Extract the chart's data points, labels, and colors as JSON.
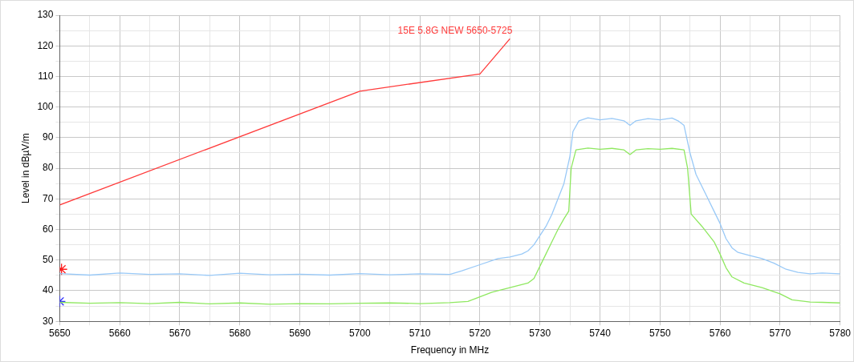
{
  "chart_data": {
    "type": "line",
    "xlabel": "Frequency in MHz",
    "ylabel": "Level in dBµV/m",
    "xlim": [
      5650,
      5780
    ],
    "xticks": [
      5650,
      {
        "value": 5655,
        "label": null
      },
      5660,
      {
        "value": 5665,
        "label": null
      },
      5670,
      {
        "value": 5675,
        "label": null
      },
      5680,
      {
        "value": 5685,
        "label": null
      },
      5690,
      {
        "value": 5695,
        "label": null
      },
      5700,
      {
        "value": 5705,
        "label": null
      },
      5710,
      {
        "value": 5715,
        "label": null
      },
      5720,
      {
        "value": 5725,
        "label": null
      },
      5730,
      {
        "value": 5735,
        "label": null
      },
      5740,
      {
        "value": 5745,
        "label": null
      },
      5750,
      {
        "value": 5755,
        "label": null
      },
      5760,
      {
        "value": 5765,
        "label": null
      },
      5770,
      {
        "value": 5775,
        "label": null
      },
      5780
    ],
    "ylim": [
      30,
      130
    ],
    "yticks": [
      30,
      {
        "value": 35,
        "label": null
      },
      40,
      {
        "value": 45,
        "label": null
      },
      50,
      {
        "value": 55,
        "label": null
      },
      60,
      {
        "value": 65,
        "label": null
      },
      70,
      {
        "value": 75,
        "label": null
      },
      80,
      {
        "value": 85,
        "label": null
      },
      90,
      {
        "value": 95,
        "label": null
      },
      100,
      {
        "value": 105,
        "label": null
      },
      110,
      {
        "value": 115,
        "label": null
      },
      120,
      {
        "value": 125,
        "label": null
      },
      130
    ],
    "grid": true,
    "legend": false,
    "line_style": "solid",
    "series": [
      {
        "name": "15E 5.8G NEW 5650-5725",
        "color": "#ff3b3b",
        "x": [
          5650,
          5700,
          5720,
          5725
        ],
        "values": [
          68,
          105.2,
          110.8,
          122.3
        ]
      },
      {
        "color": "#99c9f7",
        "x": [
          5650,
          5655,
          5660,
          5665,
          5670,
          5675,
          5680,
          5685,
          5690,
          5695,
          5700,
          5705,
          5710,
          5715,
          5717,
          5720,
          5723,
          5725,
          5727,
          5728,
          5729,
          5730,
          5731,
          5732,
          5733,
          5734,
          5735,
          5735.5,
          5736.5,
          5738,
          5740,
          5742,
          5744,
          5745,
          5746,
          5748,
          5750,
          5752,
          5753,
          5754,
          5755,
          5756,
          5757,
          5758,
          5759,
          5760,
          5761,
          5762,
          5763,
          5765,
          5767,
          5769,
          5771,
          5773,
          5775,
          5777,
          5780
        ],
        "values": [
          45.6,
          45.1,
          45.8,
          45.3,
          45.5,
          45.0,
          45.7,
          45.2,
          45.4,
          45.1,
          45.6,
          45.2,
          45.5,
          45.3,
          46.5,
          48.5,
          50.5,
          51,
          52,
          53,
          55,
          58,
          61,
          65,
          70,
          75,
          84,
          92,
          95.5,
          96.5,
          95.8,
          96.3,
          95.5,
          94,
          95.5,
          96.2,
          95.8,
          96.4,
          95.5,
          94,
          85,
          78,
          74,
          70,
          66,
          62,
          57,
          54,
          52.5,
          51.5,
          50.5,
          49,
          47,
          46,
          45.5,
          45.8,
          45.5
        ]
      },
      {
        "color": "#8fe860",
        "x": [
          5650,
          5655,
          5660,
          5665,
          5670,
          5675,
          5680,
          5685,
          5690,
          5695,
          5700,
          5705,
          5710,
          5715,
          5718,
          5720,
          5722,
          5725,
          5728,
          5729,
          5730,
          5731,
          5732,
          5733,
          5734,
          5734.8,
          5735.2,
          5736,
          5738,
          5740,
          5742,
          5744,
          5745,
          5746,
          5748,
          5750,
          5752,
          5754,
          5754.6,
          5755.2,
          5757,
          5759,
          5760,
          5761,
          5762,
          5764,
          5767,
          5770,
          5772,
          5775,
          5777,
          5780
        ],
        "values": [
          36.2,
          35.9,
          36.1,
          35.8,
          36.2,
          35.7,
          36,
          35.6,
          35.8,
          35.7,
          35.9,
          36,
          35.8,
          36.1,
          36.5,
          38,
          39.5,
          41,
          42.5,
          44,
          48,
          52,
          56,
          60,
          63.5,
          66,
          80,
          86,
          86.6,
          86.2,
          86.5,
          86,
          84.5,
          86,
          86.4,
          86.2,
          86.5,
          86,
          80,
          65,
          61,
          56,
          52,
          47.5,
          44.5,
          42.5,
          41,
          39,
          37,
          36.3,
          36.2,
          36
        ]
      },
      {
        "type": "scatter",
        "marker": "cross",
        "color": "#ff2020",
        "x": [
          5650.3
        ],
        "values": [
          47
        ]
      },
      {
        "type": "scatter",
        "marker": "cross",
        "color": "#2b2bff",
        "x": [
          5650
        ],
        "values": [
          36.5
        ]
      }
    ]
  }
}
